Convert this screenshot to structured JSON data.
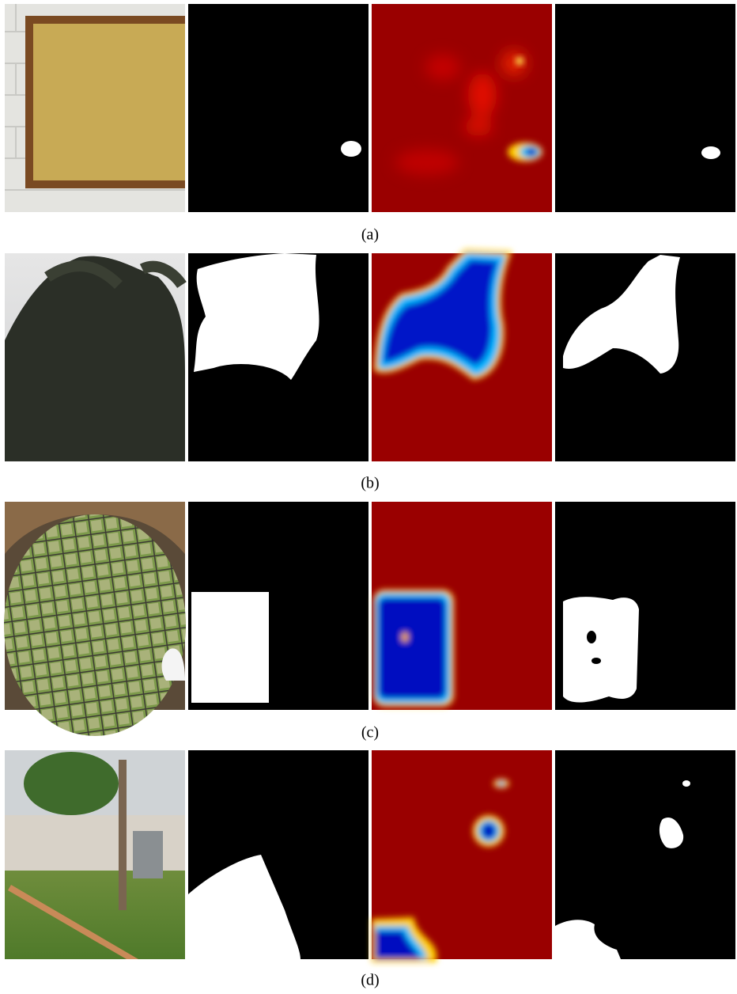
{
  "figure": {
    "rows": [
      {
        "caption": "(a)"
      },
      {
        "caption": "(b)"
      },
      {
        "caption": "(c)"
      },
      {
        "caption": "(d)"
      }
    ]
  }
}
